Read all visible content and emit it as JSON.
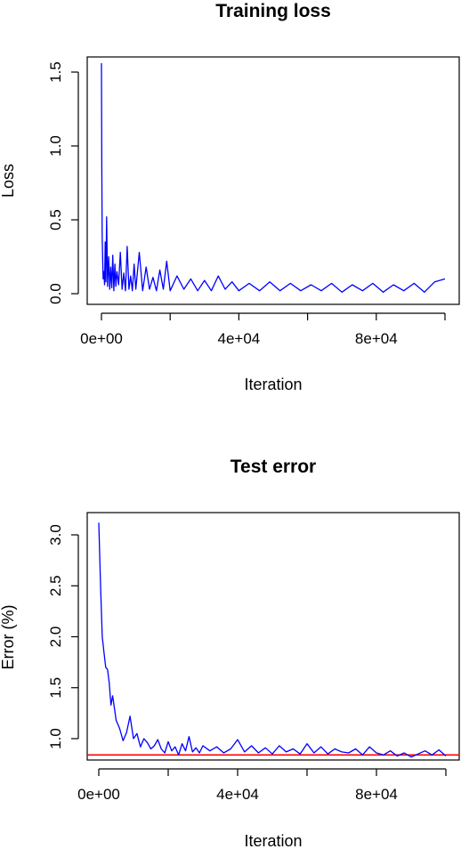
{
  "chart_data": [
    {
      "type": "line",
      "title": "Training loss",
      "xlabel": "Iteration",
      "ylabel": "Loss",
      "xlim": [
        0,
        100000
      ],
      "ylim": [
        0,
        1.5
      ],
      "grid": false,
      "legend": "none",
      "x_ticks": [
        0,
        40000,
        80000
      ],
      "x_tick_labels": [
        "0e+00",
        "4e+04",
        "8e+04"
      ],
      "y_ticks": [
        0,
        0.5,
        1,
        1.5
      ],
      "y_tick_labels": [
        "0.0",
        "0.5",
        "1.0",
        "1.5"
      ],
      "series": [
        {
          "color": "#0000ff",
          "x": [
            0,
            100,
            200,
            300,
            400,
            500,
            700,
            900,
            1100,
            1300,
            1500,
            1800,
            2100,
            2400,
            2700,
            3000,
            3300,
            3600,
            3900,
            4200,
            4500,
            5000,
            5500,
            6000,
            6500,
            7000,
            7500,
            8000,
            8500,
            9000,
            9500,
            10000,
            11000,
            12000,
            13000,
            14000,
            15000,
            16000,
            17000,
            18000,
            19000,
            20000,
            22000,
            24000,
            26000,
            28000,
            30000,
            32000,
            34000,
            36000,
            38000,
            40000,
            43000,
            46000,
            49000,
            52000,
            55000,
            58000,
            61000,
            64000,
            67000,
            70000,
            73000,
            76000,
            79000,
            82000,
            85000,
            88000,
            91000,
            94000,
            97000,
            100000
          ],
          "y": [
            1.56,
            0.85,
            0.4,
            0.28,
            0.2,
            0.1,
            0.15,
            0.06,
            0.35,
            0.08,
            0.52,
            0.05,
            0.25,
            0.03,
            0.18,
            0.04,
            0.26,
            0.02,
            0.2,
            0.05,
            0.15,
            0.06,
            0.28,
            0.03,
            0.14,
            0.02,
            0.32,
            0.03,
            0.12,
            0.02,
            0.2,
            0.03,
            0.28,
            0.02,
            0.18,
            0.03,
            0.11,
            0.02,
            0.16,
            0.03,
            0.22,
            0.02,
            0.12,
            0.03,
            0.1,
            0.02,
            0.09,
            0.02,
            0.12,
            0.03,
            0.08,
            0.02,
            0.07,
            0.02,
            0.08,
            0.02,
            0.07,
            0.02,
            0.06,
            0.02,
            0.07,
            0.01,
            0.06,
            0.02,
            0.07,
            0.01,
            0.06,
            0.02,
            0.07,
            0.01,
            0.08,
            0.1
          ]
        }
      ]
    },
    {
      "type": "line",
      "title": "Test error",
      "xlabel": "Iteration",
      "ylabel": "Error (%)",
      "xlim": [
        0,
        100000
      ],
      "ylim": [
        0.85,
        3.1
      ],
      "grid": false,
      "legend": "none",
      "x_ticks": [
        0,
        40000,
        80000
      ],
      "x_tick_labels": [
        "0e+00",
        "4e+04",
        "8e+04"
      ],
      "y_ticks": [
        1.0,
        1.5,
        2.0,
        2.5,
        3.0
      ],
      "y_tick_labels": [
        "1.0",
        "1.5",
        "2.0",
        "2.5",
        "3.0"
      ],
      "reference_line": {
        "y": 0.84,
        "color": "#ff0000"
      },
      "series": [
        {
          "color": "#0000ff",
          "x": [
            0,
            500,
            1000,
            1500,
            2000,
            2500,
            3000,
            3500,
            4000,
            5000,
            6000,
            7000,
            8000,
            9000,
            10000,
            11000,
            12000,
            13000,
            14000,
            15000,
            16000,
            17000,
            18000,
            19000,
            20000,
            21000,
            22000,
            23000,
            24000,
            25000,
            26000,
            27000,
            28000,
            29000,
            30000,
            32000,
            34000,
            36000,
            38000,
            40000,
            42000,
            44000,
            46000,
            48000,
            50000,
            52000,
            54000,
            56000,
            58000,
            60000,
            62000,
            64000,
            66000,
            68000,
            70000,
            72000,
            74000,
            76000,
            78000,
            80000,
            82000,
            84000,
            86000,
            88000,
            90000,
            92000,
            94000,
            96000,
            98000,
            100000
          ],
          "y": [
            3.12,
            2.5,
            2.0,
            1.85,
            1.7,
            1.68,
            1.55,
            1.33,
            1.42,
            1.18,
            1.1,
            0.98,
            1.06,
            1.22,
            1.0,
            1.05,
            0.92,
            1.0,
            0.96,
            0.9,
            0.93,
            0.99,
            0.9,
            0.86,
            0.97,
            0.88,
            0.92,
            0.84,
            0.95,
            0.88,
            1.02,
            0.87,
            0.91,
            0.86,
            0.93,
            0.88,
            0.92,
            0.86,
            0.9,
            0.99,
            0.87,
            0.93,
            0.86,
            0.91,
            0.85,
            0.93,
            0.87,
            0.9,
            0.85,
            0.95,
            0.86,
            0.92,
            0.85,
            0.9,
            0.87,
            0.86,
            0.9,
            0.84,
            0.92,
            0.86,
            0.84,
            0.88,
            0.83,
            0.86,
            0.82,
            0.85,
            0.88,
            0.84,
            0.89,
            0.83
          ]
        }
      ]
    }
  ]
}
